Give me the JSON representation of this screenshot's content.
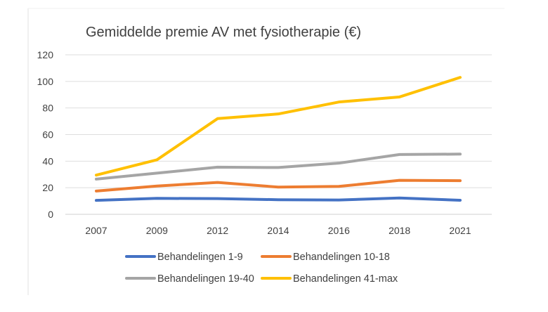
{
  "chart_data": {
    "type": "line",
    "title": "Gemiddelde premie AV met fysiotherapie (€)",
    "xlabel": "",
    "ylabel": "",
    "categories": [
      "2007",
      "2009",
      "2012",
      "2014",
      "2016",
      "2018",
      "2021"
    ],
    "ylim": [
      0,
      120
    ],
    "yticks": [
      0,
      20,
      40,
      60,
      80,
      100,
      120
    ],
    "grid": true,
    "legend_position": "bottom",
    "series": [
      {
        "name": "Behandelingen 1-9",
        "color": "#4472C4",
        "values": [
          10.5,
          12,
          11.8,
          11,
          10.8,
          12.3,
          10.6
        ]
      },
      {
        "name": "Behandelingen 10-18",
        "color": "#ED7D31",
        "values": [
          17.5,
          21.3,
          24,
          20.5,
          21,
          25.6,
          25.3
        ]
      },
      {
        "name": "Behandelingen 19-40",
        "color": "#A5A5A5",
        "values": [
          26.5,
          31,
          35.5,
          35.2,
          38.5,
          45,
          45.3
        ]
      },
      {
        "name": "Behandelingen 41-max",
        "color": "#FFC000",
        "values": [
          29.5,
          41,
          72,
          75.5,
          84.5,
          88.3,
          103
        ]
      }
    ]
  }
}
